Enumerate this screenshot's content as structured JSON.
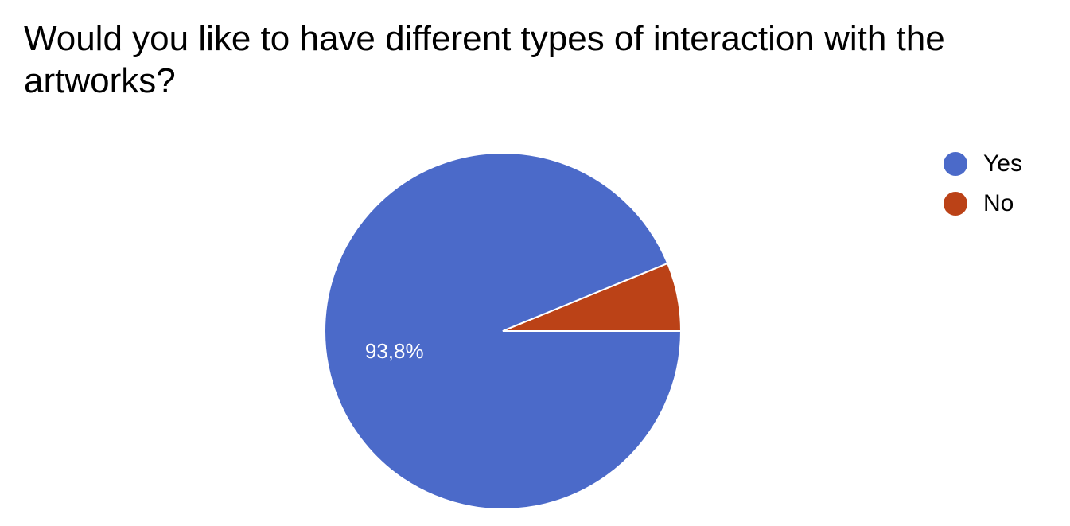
{
  "chart_data": {
    "type": "pie",
    "title": "Would you like to have different types of interaction with the artworks?",
    "slices": [
      {
        "label": "Yes",
        "value": 93.8,
        "display": "93,8%",
        "color": "#4b6ac9"
      },
      {
        "label": "No",
        "value": 6.2,
        "display": "",
        "color": "#bb4217"
      }
    ],
    "legend_position": "top-right"
  }
}
